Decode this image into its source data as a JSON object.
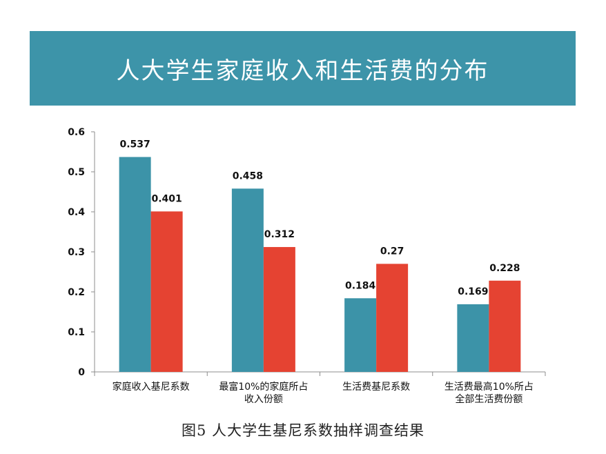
{
  "banner": {
    "title": "人大学生家庭收入和生活费的分布"
  },
  "caption": "图5 人大学生基尼系数抽样调查结果",
  "colors": {
    "banner": "#3d94a9",
    "series_a": "#3c93a8",
    "series_b": "#e54332",
    "axis": "#8c8c8c"
  },
  "chart_data": {
    "type": "bar",
    "categories": [
      [
        "家庭收入基尼系数"
      ],
      [
        "最富10%的家庭所占",
        "收入份额"
      ],
      [
        "生活费基尼系数"
      ],
      [
        "生活费最高10%所占",
        "全部生活费份额"
      ]
    ],
    "series": [
      {
        "values": [
          0.537,
          0.458,
          0.184,
          0.169
        ],
        "labels": [
          "0.537",
          "0.458",
          "0.184",
          "0.169"
        ]
      },
      {
        "values": [
          0.401,
          0.312,
          0.27,
          0.228
        ],
        "labels": [
          "0.401",
          "0.312",
          "0.27",
          "0.228"
        ]
      }
    ],
    "ylim": [
      0,
      0.6
    ],
    "yticks": [
      "0",
      "0.1",
      "0.2",
      "0.3",
      "0.4",
      "0.5",
      "0.6"
    ],
    "grid": false,
    "legend": "none"
  }
}
